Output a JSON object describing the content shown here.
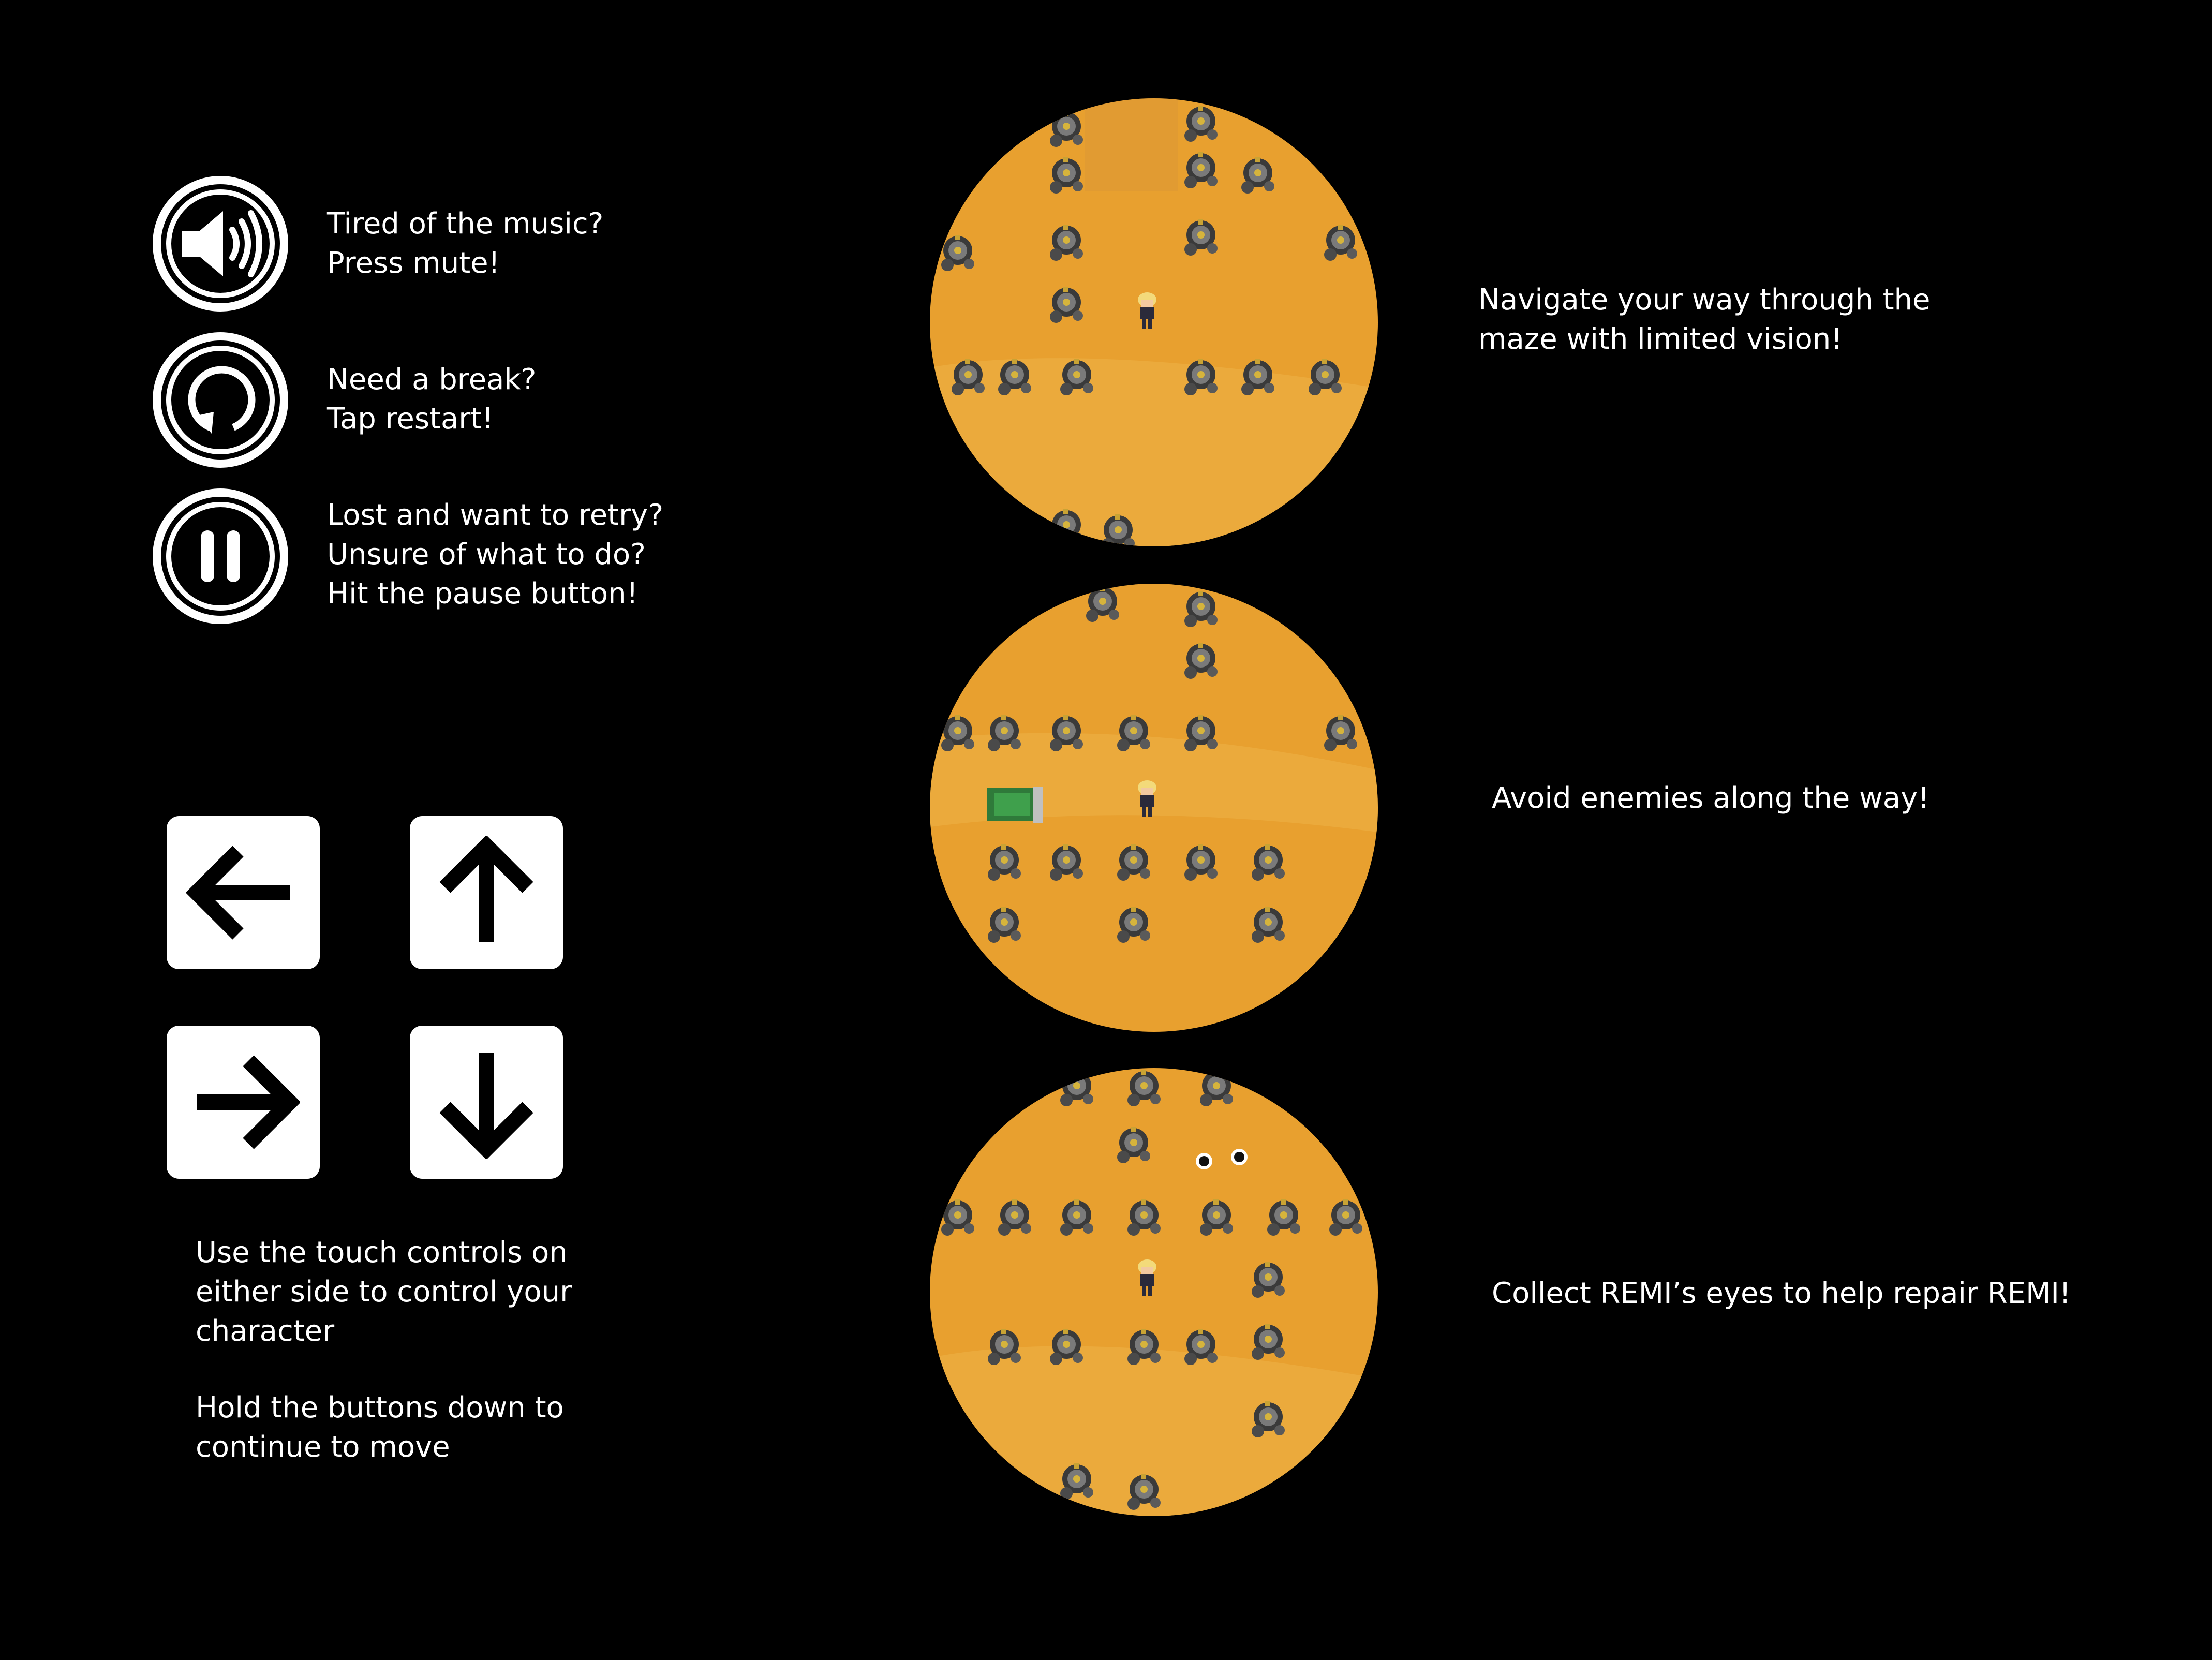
{
  "hud_buttons": [
    {
      "icon": "speaker-icon",
      "lines": "Tired of the music?\nPress mute!"
    },
    {
      "icon": "restart-icon",
      "lines": "Need a break?\nTap restart!"
    },
    {
      "icon": "pause-icon",
      "lines": "Lost and want to retry?\nUnsure of what to do?\nHit the pause button!"
    }
  ],
  "dpad": {
    "keys": [
      "arrow-left-icon",
      "arrow-up-icon",
      "arrow-right-icon",
      "arrow-down-icon"
    ],
    "help_1": "Use the touch controls on\neither side to control your\ncharacter",
    "help_2": "Hold the buttons down to\ncontinue to move"
  },
  "screens": [
    {
      "caption": "Navigate your way through the\nmaze with limited vision!"
    },
    {
      "caption": "Avoid enemies along the way!"
    },
    {
      "caption": "Collect REMI’s eyes to help repair REMI!"
    }
  ],
  "colors": {
    "background": "#000000",
    "sand": "#E8A02F",
    "sand_light": "#EDB046",
    "ui": "#FFFFFF"
  }
}
